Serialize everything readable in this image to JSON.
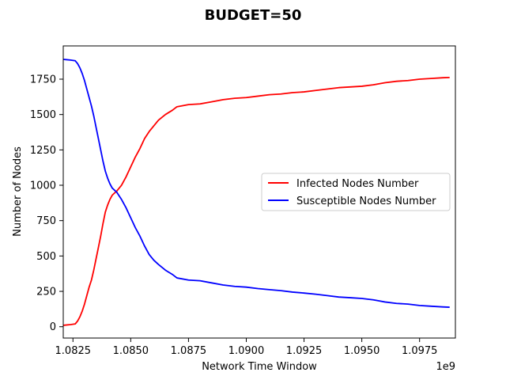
{
  "chart_data": {
    "type": "line",
    "title": "BUDGET=50",
    "xlabel": "Network Time Window",
    "ylabel": "Number of Nodes",
    "x_offset_label": "1e9",
    "xlim": [
      1.08208,
      1.09905
    ],
    "ylim": [
      -80,
      1985
    ],
    "x_ticks": [
      1.0825,
      1.085,
      1.0875,
      1.09,
      1.0925,
      1.095,
      1.0975
    ],
    "x_tick_labels": [
      "1.0825",
      "1.0850",
      "1.0875",
      "1.0900",
      "1.0925",
      "1.0950",
      "1.0975"
    ],
    "y_ticks": [
      0,
      250,
      500,
      750,
      1000,
      1250,
      1500,
      1750
    ],
    "y_tick_labels": [
      "0",
      "250",
      "500",
      "750",
      "1000",
      "1250",
      "1500",
      "1750"
    ],
    "grid": false,
    "legend_position": "center-right",
    "series": [
      {
        "name": "Infected Nodes Number",
        "color": "#ff0000",
        "points": [
          [
            1.08208,
            10
          ],
          [
            1.0822,
            12
          ],
          [
            1.0824,
            15
          ],
          [
            1.0826,
            20
          ],
          [
            1.0827,
            40
          ],
          [
            1.0828,
            70
          ],
          [
            1.0829,
            110
          ],
          [
            1.083,
            160
          ],
          [
            1.0831,
            220
          ],
          [
            1.0832,
            280
          ],
          [
            1.0833,
            330
          ],
          [
            1.0834,
            400
          ],
          [
            1.0835,
            480
          ],
          [
            1.0836,
            560
          ],
          [
            1.0837,
            640
          ],
          [
            1.0838,
            730
          ],
          [
            1.0839,
            810
          ],
          [
            1.084,
            860
          ],
          [
            1.0841,
            900
          ],
          [
            1.0842,
            930
          ],
          [
            1.0844,
            960
          ],
          [
            1.0846,
            1000
          ],
          [
            1.0848,
            1060
          ],
          [
            1.085,
            1130
          ],
          [
            1.0852,
            1200
          ],
          [
            1.0854,
            1260
          ],
          [
            1.0856,
            1330
          ],
          [
            1.0858,
            1380
          ],
          [
            1.086,
            1420
          ],
          [
            1.0862,
            1460
          ],
          [
            1.0865,
            1500
          ],
          [
            1.0868,
            1530
          ],
          [
            1.087,
            1555
          ],
          [
            1.0875,
            1570
          ],
          [
            1.088,
            1575
          ],
          [
            1.0885,
            1590
          ],
          [
            1.089,
            1605
          ],
          [
            1.0895,
            1615
          ],
          [
            1.09,
            1620
          ],
          [
            1.0905,
            1630
          ],
          [
            1.091,
            1640
          ],
          [
            1.0915,
            1645
          ],
          [
            1.092,
            1655
          ],
          [
            1.0925,
            1660
          ],
          [
            1.093,
            1670
          ],
          [
            1.0935,
            1680
          ],
          [
            1.094,
            1690
          ],
          [
            1.0945,
            1695
          ],
          [
            1.095,
            1700
          ],
          [
            1.0955,
            1710
          ],
          [
            1.096,
            1725
          ],
          [
            1.0965,
            1735
          ],
          [
            1.097,
            1740
          ],
          [
            1.0975,
            1750
          ],
          [
            1.098,
            1755
          ],
          [
            1.0985,
            1760
          ],
          [
            1.0988,
            1762
          ]
        ]
      },
      {
        "name": "Susceptible Nodes Number",
        "color": "#0000ff",
        "points": [
          [
            1.08208,
            1890
          ],
          [
            1.0822,
            1888
          ],
          [
            1.0824,
            1885
          ],
          [
            1.0826,
            1880
          ],
          [
            1.0827,
            1860
          ],
          [
            1.0828,
            1830
          ],
          [
            1.0829,
            1790
          ],
          [
            1.083,
            1740
          ],
          [
            1.0831,
            1680
          ],
          [
            1.0832,
            1620
          ],
          [
            1.0833,
            1560
          ],
          [
            1.0834,
            1490
          ],
          [
            1.0835,
            1410
          ],
          [
            1.0836,
            1330
          ],
          [
            1.0837,
            1250
          ],
          [
            1.0838,
            1170
          ],
          [
            1.0839,
            1100
          ],
          [
            1.084,
            1050
          ],
          [
            1.0841,
            1010
          ],
          [
            1.0842,
            980
          ],
          [
            1.0844,
            950
          ],
          [
            1.0846,
            900
          ],
          [
            1.0848,
            840
          ],
          [
            1.085,
            770
          ],
          [
            1.0852,
            700
          ],
          [
            1.0854,
            640
          ],
          [
            1.0856,
            570
          ],
          [
            1.0858,
            510
          ],
          [
            1.086,
            470
          ],
          [
            1.0862,
            440
          ],
          [
            1.0865,
            400
          ],
          [
            1.0868,
            370
          ],
          [
            1.087,
            345
          ],
          [
            1.0875,
            330
          ],
          [
            1.088,
            325
          ],
          [
            1.0885,
            310
          ],
          [
            1.089,
            295
          ],
          [
            1.0895,
            285
          ],
          [
            1.09,
            280
          ],
          [
            1.0905,
            270
          ],
          [
            1.091,
            262
          ],
          [
            1.0915,
            255
          ],
          [
            1.092,
            245
          ],
          [
            1.0925,
            238
          ],
          [
            1.093,
            230
          ],
          [
            1.0935,
            220
          ],
          [
            1.094,
            210
          ],
          [
            1.0945,
            205
          ],
          [
            1.095,
            200
          ],
          [
            1.0955,
            190
          ],
          [
            1.096,
            175
          ],
          [
            1.0965,
            165
          ],
          [
            1.097,
            160
          ],
          [
            1.0975,
            150
          ],
          [
            1.098,
            145
          ],
          [
            1.0985,
            140
          ],
          [
            1.0988,
            138
          ]
        ]
      }
    ]
  }
}
